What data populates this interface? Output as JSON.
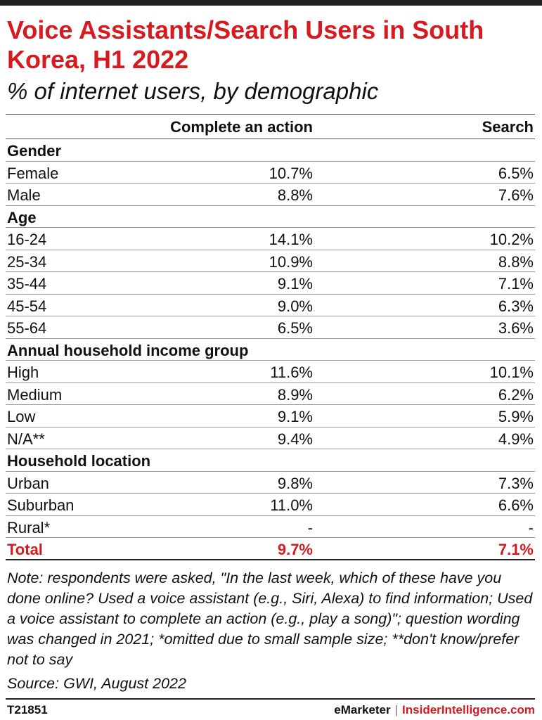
{
  "header": {
    "title": "Voice Assistants/Search Users in South Korea, H1 2022",
    "subtitle": "% of internet users, by demographic"
  },
  "chart_data": {
    "type": "table",
    "columns": [
      "Complete an action",
      "Search"
    ],
    "rows": [
      {
        "label": "Gender",
        "section": true
      },
      {
        "label": "Female",
        "values": [
          "10.7%",
          "6.5%"
        ]
      },
      {
        "label": "Male",
        "values": [
          "8.8%",
          "7.6%"
        ]
      },
      {
        "label": "Age",
        "section": true
      },
      {
        "label": "16-24",
        "values": [
          "14.1%",
          "10.2%"
        ]
      },
      {
        "label": "25-34",
        "values": [
          "10.9%",
          "8.8%"
        ]
      },
      {
        "label": "35-44",
        "values": [
          "9.1%",
          "7.1%"
        ]
      },
      {
        "label": "45-54",
        "values": [
          "9.0%",
          "6.3%"
        ]
      },
      {
        "label": "55-64",
        "values": [
          "6.5%",
          "3.6%"
        ]
      },
      {
        "label": "Annual household income group",
        "section": true
      },
      {
        "label": "High",
        "values": [
          "11.6%",
          "10.1%"
        ]
      },
      {
        "label": "Medium",
        "values": [
          "8.9%",
          "6.2%"
        ]
      },
      {
        "label": "Low",
        "values": [
          "9.1%",
          "5.9%"
        ]
      },
      {
        "label": "N/A**",
        "values": [
          "9.4%",
          "4.9%"
        ]
      },
      {
        "label": "Household location",
        "section": true
      },
      {
        "label": "Urban",
        "values": [
          "9.8%",
          "7.3%"
        ]
      },
      {
        "label": "Suburban",
        "values": [
          "11.0%",
          "6.6%"
        ]
      },
      {
        "label": "Rural*",
        "values": [
          "-",
          "-"
        ]
      }
    ],
    "total": {
      "label": "Total",
      "values": [
        "9.7%",
        "7.1%"
      ]
    }
  },
  "note": "Note: respondents were asked, \"In the last week, which of these have you done online? Used a voice assistant (e.g., Siri, Alexa) to find information; Used a voice assistant to complete an action (e.g., play a song)\"; question wording was changed in 2021; *omitted due to small sample size; **don't know/prefer not to say",
  "source": "Source: GWI, August 2022",
  "footer": {
    "id": "T21851",
    "brand": "eMarketer",
    "separator": "|",
    "brand2": "InsiderIntelligence.com"
  },
  "colors": {
    "accent": "#d71920",
    "text": "#111111"
  }
}
